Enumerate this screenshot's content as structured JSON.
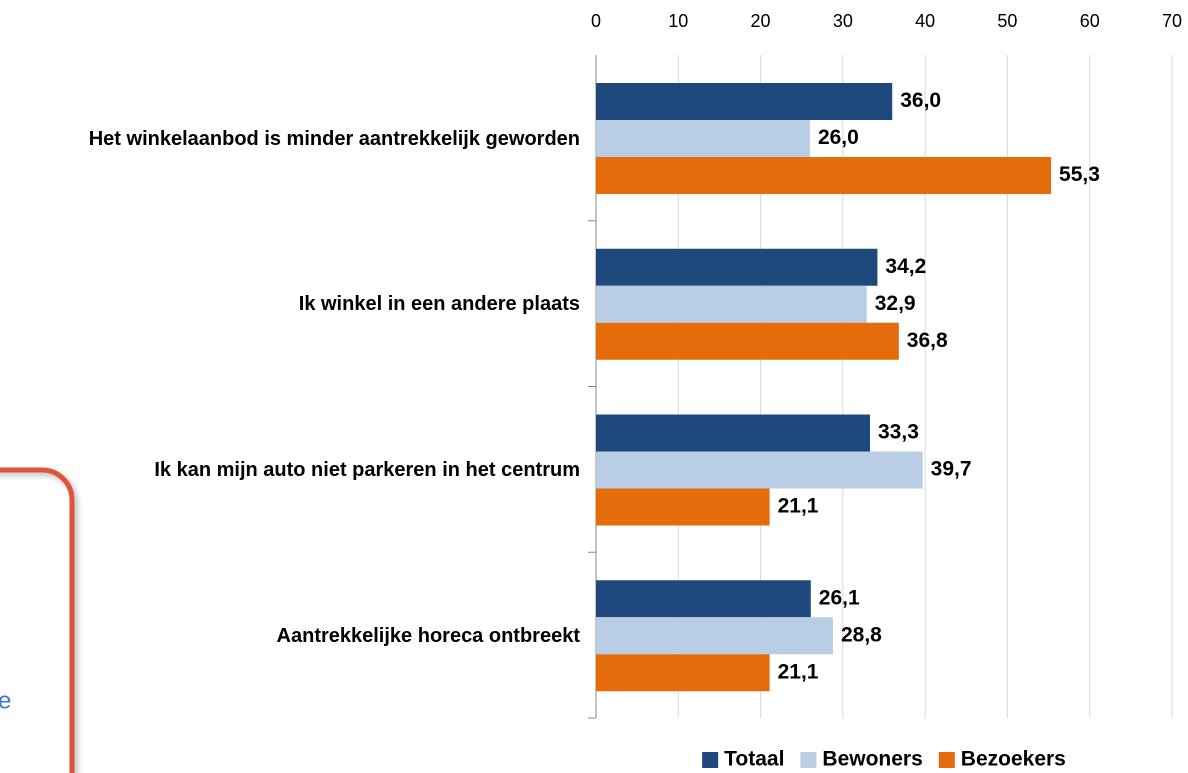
{
  "chart_data": {
    "type": "bar",
    "orientation": "horizontal",
    "categories": [
      "Het winkelaanbod is minder aantrekkelijk geworden",
      "Ik winkel in een andere plaats",
      "Ik kan mijn auto niet parkeren in het centrum",
      "Aantrekkelijke horeca ontbreekt"
    ],
    "series": [
      {
        "name": "Totaal",
        "color": "#1f497d",
        "values": [
          36.0,
          34.2,
          33.3,
          26.1
        ],
        "value_labels": [
          "36,0",
          "34,2",
          "33,3",
          "26,1"
        ]
      },
      {
        "name": "Bewoners",
        "color": "#b9cde5",
        "values": [
          26.0,
          32.9,
          39.7,
          28.8
        ],
        "value_labels": [
          "26,0",
          "32,9",
          "39,7",
          "28,8"
        ]
      },
      {
        "name": "Bezoekers",
        "color": "#e46c0a",
        "values": [
          55.3,
          36.8,
          21.1,
          21.1
        ],
        "value_labels": [
          "55,3",
          "36,8",
          "21,1",
          "21,1"
        ]
      }
    ],
    "xlim": [
      0,
      70
    ],
    "xticks": [
      0,
      10,
      20,
      30,
      40,
      50,
      60,
      70
    ],
    "grid": true,
    "legend": "bottom",
    "annotation": "e"
  }
}
